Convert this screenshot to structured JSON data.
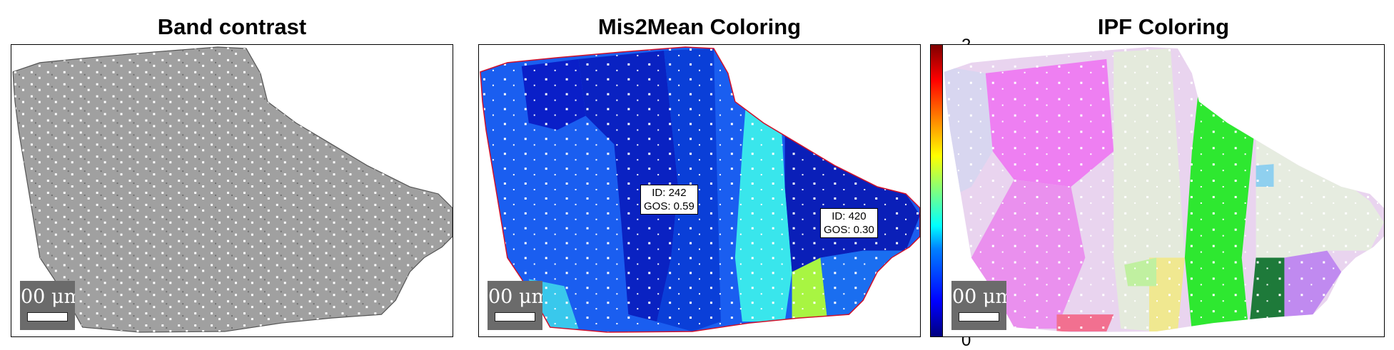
{
  "panels": [
    {
      "title": "Band contrast",
      "scalebar": "00 μm"
    },
    {
      "title": "Mis2Mean Coloring",
      "scalebar": "00 μm"
    },
    {
      "title": "IPF Coloring",
      "scalebar": "00 μm"
    }
  ],
  "annotations": [
    {
      "id_label": "ID: 242",
      "gos_label": "GOS: 0.59"
    },
    {
      "id_label": "ID: 420",
      "gos_label": "GOS: 0.30"
    }
  ],
  "colorbar": {
    "max_label": "2",
    "min_label": "0",
    "min": 0,
    "max": 2
  },
  "colors": {
    "band_gray": "#a3a3a3",
    "mis_base": "#1a5ef0",
    "mis_dark": "#0a1fc8",
    "mis_cyan": "#39e6ec",
    "mis_lime": "#a8f542",
    "ipf_magenta": "#e86ff0",
    "ipf_green": "#2ee830",
    "ipf_light": "#e9e4ef"
  }
}
